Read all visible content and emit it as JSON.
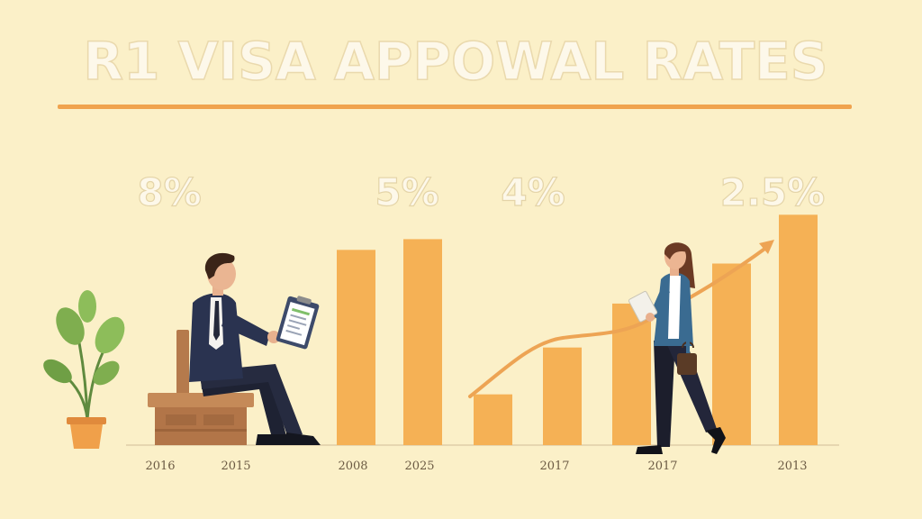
{
  "colors": {
    "background": "#fbf0c8",
    "bar": "#f5b155",
    "accent_line": "#f0a34e",
    "trend_arrow": "#eda454",
    "title_fill": "#fdf8ea"
  },
  "chart_data": {
    "type": "bar",
    "title": "R1 VISA APPOWAL RATES",
    "xlabel": "",
    "ylabel": "",
    "ylim": [
      0,
      240
    ],
    "grid": false,
    "legend": "none",
    "bar_values": [
      200,
      211,
      52,
      100,
      145,
      186,
      236
    ],
    "percent_labels": [
      "8%",
      "5%",
      "4%",
      "2.5%"
    ],
    "year_labels": [
      "2016",
      "2015",
      "2008",
      "2025",
      "2017",
      "2017",
      "2013"
    ]
  },
  "illustration": {
    "left_person": "man-seated-with-clipboard-icon",
    "right_person": "woman-walking-with-bag-icon",
    "plant": "potted-plant-icon",
    "bench": "wooden-bench-icon",
    "trend": "trend-arrow-icon"
  }
}
